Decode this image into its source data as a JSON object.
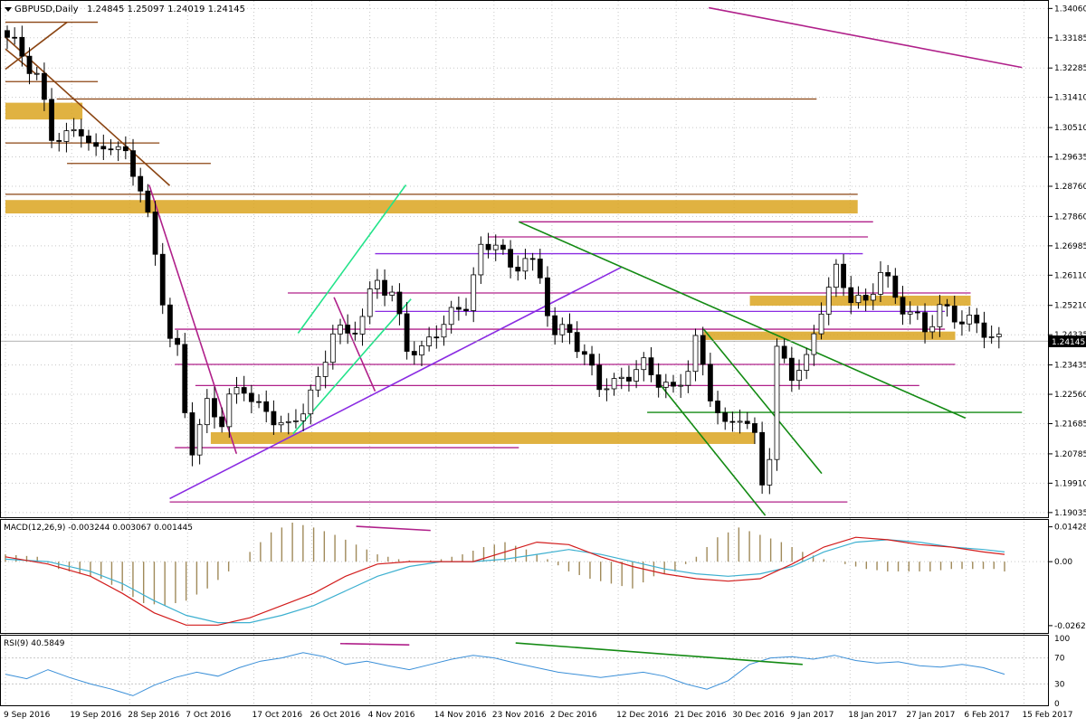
{
  "window": {
    "symbol_label": "GBPUSD,Daily",
    "ohlc_label": "1.24845 1.25097 1.24019 1.24145"
  },
  "colors": {
    "grid": "#c8c8c8",
    "axis": "#000000",
    "bull": "#ffffff",
    "bear": "#000000",
    "zone": "#daa520",
    "magenta": "#b0208a",
    "purple": "#8a2be2",
    "brown": "#8b4513",
    "green": "#138a13",
    "cyan": "#22e38a",
    "macd_hist": "#a08a5a",
    "macd_signal": "#3db0d0",
    "macd_main": "#d21c1c",
    "rsi": "#3a8fd8"
  },
  "chart_data": [
    {
      "type": "candlestick",
      "name": "main",
      "price_axis": {
        "ticks": [
          "1.34060",
          "1.33185",
          "1.32285",
          "1.31410",
          "1.30510",
          "1.29635",
          "1.28760",
          "1.27860",
          "1.26985",
          "1.26110",
          "1.25210",
          "1.24335",
          "1.23435",
          "1.22560",
          "1.21685",
          "1.20785",
          "1.19910",
          "1.19035"
        ],
        "current_price": "1.24145",
        "ylim": [
          1.1895,
          1.3415
        ]
      },
      "time_axis": {
        "labels": [
          "9 Sep 2016",
          "19 Sep 2016",
          "28 Sep 2016",
          "7 Oct 2016",
          "17 Oct 2016",
          "26 Oct 2016",
          "4 Nov 2016",
          "14 Nov 2016",
          "23 Nov 2016",
          "2 Dec 2016",
          "12 Dec 2016",
          "21 Dec 2016",
          "30 Dec 2016",
          "9 Jan 2017",
          "18 Jan 2017",
          "27 Jan 2017",
          "6 Feb 2017",
          "15 Feb 2017"
        ],
        "label_bar_index": [
          0,
          8,
          15,
          22,
          30,
          37,
          44,
          52,
          59,
          66,
          74,
          81,
          88,
          95,
          102,
          109,
          116,
          123
        ]
      },
      "close_path": [
        [
          0,
          1.332
        ],
        [
          2,
          1.327
        ],
        [
          4,
          1.32
        ],
        [
          6,
          1.303
        ],
        [
          8,
          1.302
        ],
        [
          10,
          1.305
        ],
        [
          12,
          1.297
        ],
        [
          14,
          1.301
        ],
        [
          16,
          1.296
        ],
        [
          18,
          1.288
        ],
        [
          19,
          1.278
        ],
        [
          20,
          1.266
        ],
        [
          22,
          1.243
        ],
        [
          23,
          1.238
        ],
        [
          24,
          1.22
        ],
        [
          25,
          1.21
        ],
        [
          27,
          1.222
        ],
        [
          29,
          1.218
        ],
        [
          30,
          1.224
        ],
        [
          32,
          1.228
        ],
        [
          34,
          1.221
        ],
        [
          36,
          1.219
        ],
        [
          38,
          1.215
        ],
        [
          40,
          1.222
        ],
        [
          42,
          1.229
        ],
        [
          44,
          1.245
        ],
        [
          46,
          1.243
        ],
        [
          48,
          1.249
        ],
        [
          50,
          1.26
        ],
        [
          52,
          1.255
        ],
        [
          54,
          1.24
        ],
        [
          56,
          1.238
        ],
        [
          58,
          1.245
        ],
        [
          60,
          1.249
        ],
        [
          62,
          1.253
        ],
        [
          64,
          1.268
        ],
        [
          66,
          1.272
        ],
        [
          68,
          1.262
        ],
        [
          70,
          1.267
        ],
        [
          72,
          1.26
        ],
        [
          74,
          1.243
        ],
        [
          76,
          1.245
        ],
        [
          78,
          1.236
        ],
        [
          80,
          1.229
        ],
        [
          82,
          1.228
        ],
        [
          84,
          1.232
        ],
        [
          86,
          1.234
        ],
        [
          88,
          1.23
        ],
        [
          90,
          1.226
        ],
        [
          92,
          1.234
        ],
        [
          93,
          1.241
        ],
        [
          95,
          1.226
        ],
        [
          97,
          1.215
        ],
        [
          99,
          1.22
        ],
        [
          101,
          1.212
        ],
        [
          102,
          1.2
        ],
        [
          103,
          1.208
        ],
        [
          104,
          1.238
        ],
        [
          106,
          1.232
        ],
        [
          108,
          1.235
        ],
        [
          110,
          1.252
        ],
        [
          112,
          1.262
        ],
        [
          114,
          1.255
        ],
        [
          116,
          1.252
        ],
        [
          118,
          1.263
        ],
        [
          120,
          1.254
        ],
        [
          122,
          1.25
        ],
        [
          124,
          1.245
        ],
        [
          126,
          1.251
        ],
        [
          128,
          1.249
        ],
        [
          130,
          1.247
        ],
        [
          132,
          1.245
        ],
        [
          134,
          1.241
        ]
      ],
      "bar_count": 135,
      "annotations": {
        "zones": [
          [
            0,
            1.3125,
            15,
            1.3075
          ],
          [
            0,
            1.2835,
            166,
            1.2795
          ],
          [
            40,
            1.2143,
            146,
            1.2108
          ],
          [
            145,
            1.255,
            188,
            1.252
          ],
          [
            136,
            1.2443,
            185,
            1.2418
          ]
        ],
        "horizontal_lines": [
          [
            "brown",
            0,
            1.3365,
            18,
            1.3365
          ],
          [
            "brown",
            0,
            1.3188,
            18,
            1.3188
          ],
          [
            "brown",
            10,
            1.3136,
            158,
            1.3136
          ],
          [
            "brown",
            0,
            1.3005,
            30,
            1.3005
          ],
          [
            "brown",
            12,
            1.2944,
            40,
            1.2944
          ],
          [
            "brown",
            0,
            1.2852,
            166,
            1.2852
          ],
          [
            "magenta",
            33,
            1.2097,
            100,
            1.2097
          ],
          [
            "magenta",
            32,
            1.1935,
            164,
            1.1935
          ],
          [
            "magenta",
            33,
            1.2345,
            185,
            1.2345
          ],
          [
            "magenta",
            37,
            1.2282,
            178,
            1.2282
          ],
          [
            "magenta",
            33,
            1.245,
            183,
            1.245
          ],
          [
            "purple",
            72,
            1.2503,
            183,
            1.2503
          ],
          [
            "magenta",
            55,
            1.2558,
            188,
            1.2558
          ],
          [
            "purple",
            72,
            1.2675,
            167,
            1.2675
          ],
          [
            "magenta",
            94,
            1.2725,
            168,
            1.2725
          ],
          [
            "magenta",
            100,
            1.277,
            169,
            1.277
          ],
          [
            "green",
            125,
            1.2202,
            198,
            1.2202
          ]
        ],
        "trend_lines": [
          [
            "brown",
            0,
            1.332,
            32,
            1.2878
          ],
          [
            "brown",
            0,
            1.3225,
            12,
            1.3365
          ],
          [
            "brown",
            0,
            1.3285,
            6,
            1.321
          ],
          [
            "magenta",
            28,
            1.288,
            45,
            1.2079
          ],
          [
            "magenta",
            64,
            1.2545,
            72,
            1.2265
          ],
          [
            "magenta",
            137,
            1.3408,
            198,
            1.323
          ],
          [
            "purple",
            32,
            1.1945,
            120,
            1.2635
          ],
          [
            "cyan",
            57,
            1.2438,
            78,
            1.288
          ],
          [
            "cyan",
            56,
            1.2138,
            79,
            1.254
          ],
          [
            "green",
            100,
            1.277,
            187,
            1.2185
          ],
          [
            "green",
            136,
            1.245,
            159,
            1.202
          ],
          [
            "green",
            127,
            1.2295,
            148,
            1.1895
          ]
        ]
      }
    },
    {
      "type": "line",
      "name": "macd",
      "title": "MACD(12,26,9) -0.003244 0.003067 0.001445",
      "ticks": [
        "0.014288",
        "0.00",
        "-0.026237"
      ],
      "ylim": [
        -0.0285,
        0.016
      ],
      "histogram": [
        [
          0,
          0.003
        ],
        [
          6,
          0.002
        ],
        [
          10,
          -0.003
        ],
        [
          14,
          -0.005
        ],
        [
          18,
          -0.007
        ],
        [
          22,
          -0.012
        ],
        [
          26,
          -0.017
        ],
        [
          30,
          -0.018
        ],
        [
          34,
          -0.016
        ],
        [
          38,
          -0.011
        ],
        [
          42,
          -0.004
        ],
        [
          46,
          0.004
        ],
        [
          50,
          0.012
        ],
        [
          54,
          0.016
        ],
        [
          58,
          0.014
        ],
        [
          62,
          0.011
        ],
        [
          66,
          0.007
        ],
        [
          70,
          0.003
        ],
        [
          74,
          0.001
        ],
        [
          78,
          0.0
        ],
        [
          82,
          0.001
        ],
        [
          86,
          0.003
        ],
        [
          90,
          0.006
        ],
        [
          94,
          0.008
        ],
        [
          98,
          0.005
        ],
        [
          102,
          0.001
        ],
        [
          106,
          -0.004
        ],
        [
          110,
          -0.007
        ],
        [
          114,
          -0.009
        ],
        [
          118,
          -0.011
        ],
        [
          122,
          -0.006
        ],
        [
          126,
          -0.004
        ],
        [
          130,
          0.002
        ],
        [
          134,
          0.01
        ],
        [
          138,
          0.014
        ],
        [
          142,
          0.011
        ],
        [
          146,
          0.008
        ],
        [
          150,
          0.004
        ],
        [
          154,
          0.001
        ],
        [
          158,
          -0.001
        ],
        [
          162,
          -0.003
        ],
        [
          166,
          -0.004
        ],
        [
          170,
          -0.004
        ],
        [
          174,
          -0.004
        ],
        [
          178,
          -0.003
        ],
        [
          182,
          -0.003
        ],
        [
          186,
          -0.003
        ],
        [
          188,
          -0.004
        ]
      ],
      "signal": [
        [
          0,
          0.001
        ],
        [
          8,
          0.0
        ],
        [
          16,
          -0.004
        ],
        [
          22,
          -0.009
        ],
        [
          28,
          -0.016
        ],
        [
          34,
          -0.022
        ],
        [
          40,
          -0.025
        ],
        [
          46,
          -0.025
        ],
        [
          52,
          -0.022
        ],
        [
          58,
          -0.018
        ],
        [
          64,
          -0.012
        ],
        [
          70,
          -0.006
        ],
        [
          76,
          -0.002
        ],
        [
          82,
          0.0
        ],
        [
          88,
          0.0
        ],
        [
          94,
          0.001
        ],
        [
          100,
          0.003
        ],
        [
          106,
          0.005
        ],
        [
          112,
          0.003
        ],
        [
          118,
          0.0
        ],
        [
          124,
          -0.003
        ],
        [
          130,
          -0.005
        ],
        [
          136,
          -0.006
        ],
        [
          142,
          -0.005
        ],
        [
          148,
          -0.002
        ],
        [
          154,
          0.004
        ],
        [
          160,
          0.008
        ],
        [
          166,
          0.009
        ],
        [
          172,
          0.008
        ],
        [
          178,
          0.006
        ],
        [
          184,
          0.005
        ],
        [
          188,
          0.004
        ]
      ],
      "main": [
        [
          0,
          0.002
        ],
        [
          8,
          -0.001
        ],
        [
          16,
          -0.006
        ],
        [
          22,
          -0.013
        ],
        [
          28,
          -0.021
        ],
        [
          34,
          -0.026
        ],
        [
          40,
          -0.026
        ],
        [
          46,
          -0.023
        ],
        [
          52,
          -0.018
        ],
        [
          58,
          -0.013
        ],
        [
          64,
          -0.006
        ],
        [
          70,
          -0.001
        ],
        [
          76,
          0.0
        ],
        [
          82,
          0.0
        ],
        [
          88,
          0.0
        ],
        [
          94,
          0.004
        ],
        [
          100,
          0.008
        ],
        [
          106,
          0.007
        ],
        [
          112,
          0.002
        ],
        [
          118,
          -0.002
        ],
        [
          124,
          -0.005
        ],
        [
          130,
          -0.007
        ],
        [
          136,
          -0.008
        ],
        [
          142,
          -0.007
        ],
        [
          148,
          -0.001
        ],
        [
          154,
          0.006
        ],
        [
          160,
          0.01
        ],
        [
          166,
          0.009
        ],
        [
          172,
          0.007
        ],
        [
          178,
          0.006
        ],
        [
          184,
          0.004
        ],
        [
          188,
          0.003
        ]
      ]
    },
    {
      "type": "line",
      "name": "rsi",
      "title": "RSI(9) 40.5849",
      "ticks": [
        "100",
        "70",
        "30",
        "0"
      ],
      "ylim": [
        0,
        100
      ],
      "series": [
        [
          0,
          45
        ],
        [
          4,
          38
        ],
        [
          8,
          52
        ],
        [
          12,
          40
        ],
        [
          16,
          30
        ],
        [
          20,
          22
        ],
        [
          24,
          12
        ],
        [
          28,
          28
        ],
        [
          32,
          40
        ],
        [
          36,
          48
        ],
        [
          40,
          42
        ],
        [
          44,
          55
        ],
        [
          48,
          65
        ],
        [
          52,
          70
        ],
        [
          56,
          78
        ],
        [
          60,
          72
        ],
        [
          64,
          60
        ],
        [
          68,
          65
        ],
        [
          72,
          58
        ],
        [
          76,
          52
        ],
        [
          80,
          60
        ],
        [
          84,
          68
        ],
        [
          88,
          74
        ],
        [
          92,
          70
        ],
        [
          96,
          62
        ],
        [
          100,
          55
        ],
        [
          104,
          48
        ],
        [
          108,
          44
        ],
        [
          112,
          40
        ],
        [
          116,
          44
        ],
        [
          120,
          48
        ],
        [
          124,
          42
        ],
        [
          128,
          30
        ],
        [
          132,
          22
        ],
        [
          136,
          35
        ],
        [
          140,
          60
        ],
        [
          144,
          70
        ],
        [
          148,
          72
        ],
        [
          152,
          68
        ],
        [
          156,
          74
        ],
        [
          160,
          66
        ],
        [
          164,
          62
        ],
        [
          168,
          64
        ],
        [
          172,
          58
        ],
        [
          176,
          56
        ],
        [
          180,
          60
        ],
        [
          184,
          55
        ],
        [
          188,
          45
        ]
      ],
      "divergence_lines": [
        [
          "magenta",
          63,
          92,
          76,
          90
        ],
        [
          "green",
          96,
          93,
          150,
          60
        ]
      ]
    }
  ],
  "divergence_macd": [
    "magenta",
    66,
    0.0145,
    80,
    0.0128
  ]
}
